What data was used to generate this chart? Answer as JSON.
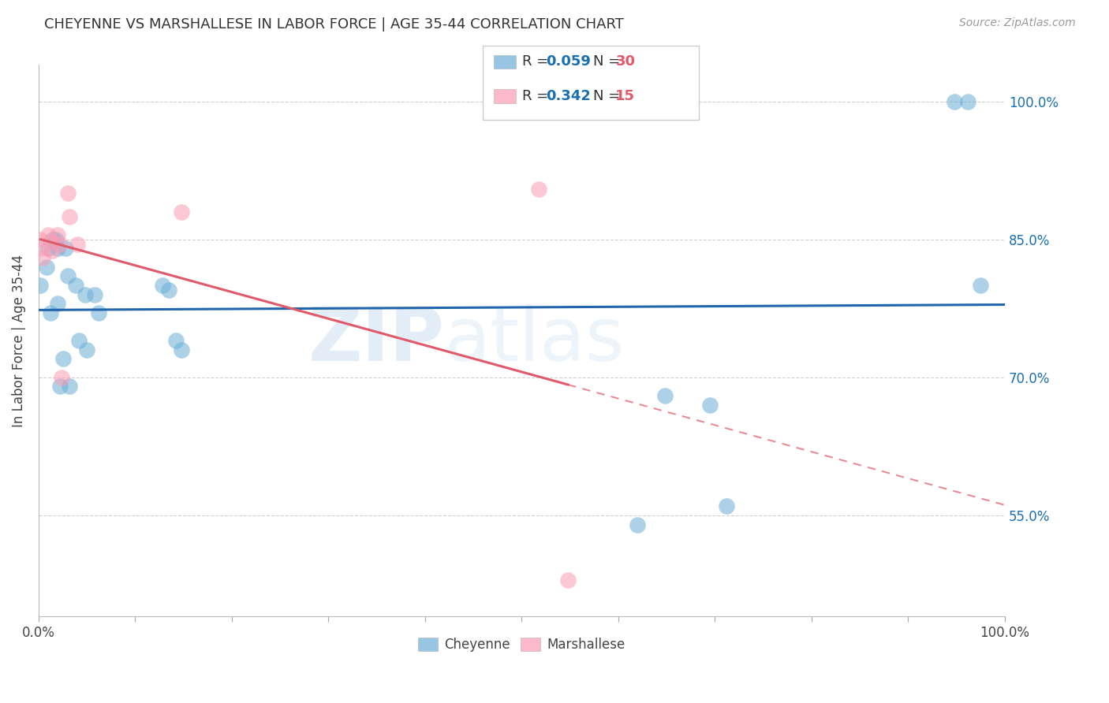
{
  "title": "CHEYENNE VS MARSHALLESE IN LABOR FORCE | AGE 35-44 CORRELATION CHART",
  "source": "Source: ZipAtlas.com",
  "ylabel": "In Labor Force | Age 35-44",
  "watermark_zip": "ZIP",
  "watermark_atlas": "atlas",
  "cheyenne_color": "#6baed6",
  "marshallese_color": "#fc9cb4",
  "blue_line_color": "#2166ac",
  "pink_line_color": "#e05a6a",
  "r_color": "#1a6faf",
  "n_color": "#e05a6a",
  "cheyenne_x": [
    0.002,
    0.008,
    0.01,
    0.012,
    0.015,
    0.018,
    0.02,
    0.02,
    0.022,
    0.025,
    0.028,
    0.03,
    0.032,
    0.038,
    0.042,
    0.048,
    0.05,
    0.058,
    0.062,
    0.128,
    0.135,
    0.142,
    0.148,
    0.62,
    0.648,
    0.695,
    0.712,
    0.948,
    0.962,
    0.975
  ],
  "cheyenne_y": [
    0.8,
    0.82,
    0.84,
    0.77,
    0.85,
    0.85,
    0.84,
    0.78,
    0.69,
    0.72,
    0.84,
    0.81,
    0.69,
    0.8,
    0.74,
    0.79,
    0.73,
    0.79,
    0.77,
    0.8,
    0.795,
    0.74,
    0.73,
    0.54,
    0.68,
    0.67,
    0.56,
    1.0,
    1.0,
    0.8
  ],
  "marshallese_x": [
    0.002,
    0.003,
    0.004,
    0.01,
    0.012,
    0.014,
    0.02,
    0.022,
    0.024,
    0.03,
    0.032,
    0.04,
    0.148,
    0.518,
    0.548
  ],
  "marshallese_y": [
    0.85,
    0.84,
    0.83,
    0.855,
    0.848,
    0.838,
    0.855,
    0.845,
    0.7,
    0.9,
    0.875,
    0.845,
    0.88,
    0.905,
    0.48
  ],
  "xmin": 0.0,
  "xmax": 1.0,
  "ymin": 0.44,
  "ymax": 1.04,
  "yticks": [
    0.55,
    0.7,
    0.85,
    1.0
  ],
  "ytick_labels": [
    "55.0%",
    "70.0%",
    "85.0%",
    "100.0%"
  ],
  "background_color": "#ffffff",
  "grid_color": "#d0d0d0"
}
